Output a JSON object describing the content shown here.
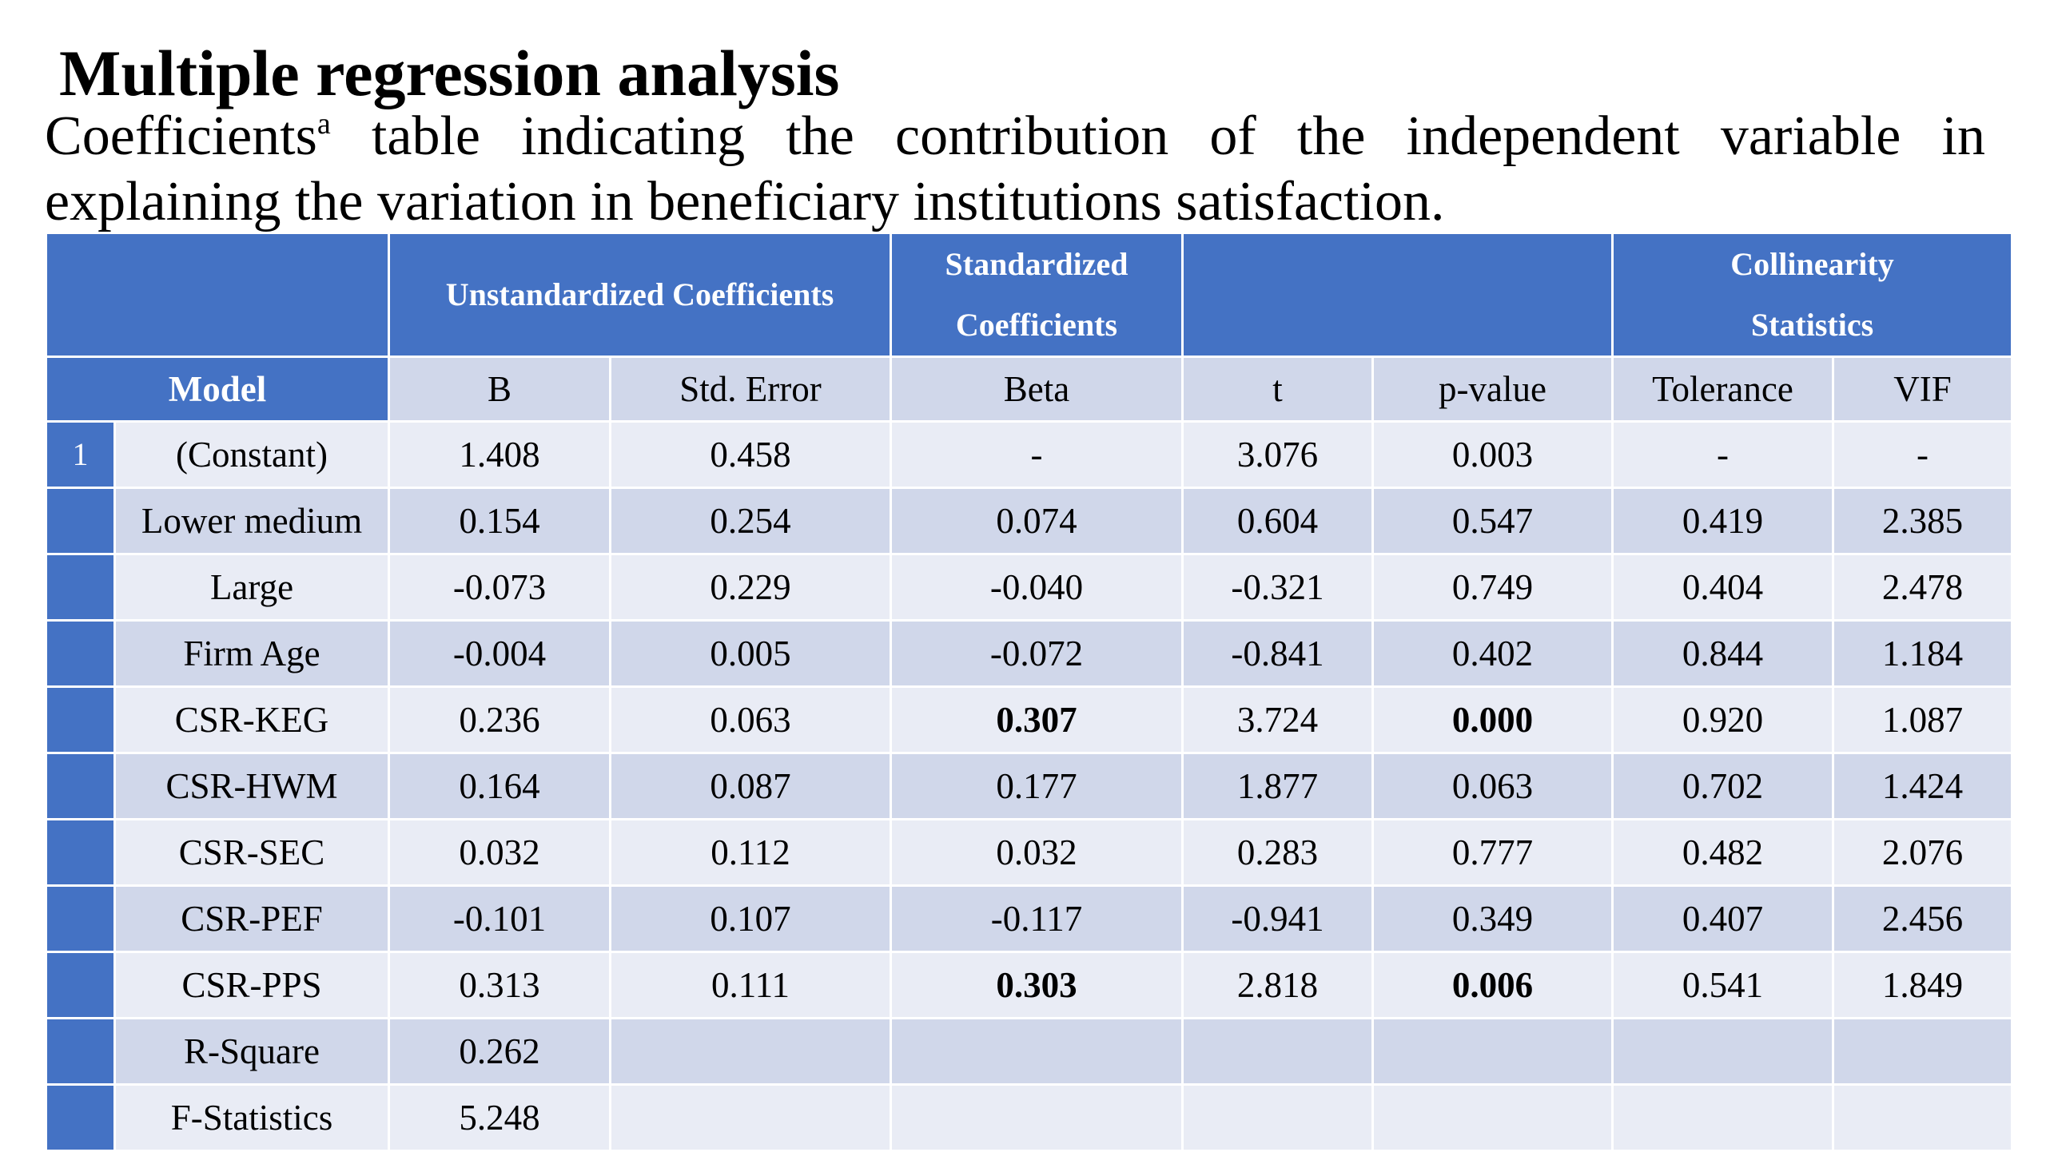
{
  "title": "Multiple regression analysis",
  "subtitle": {
    "lead": "Coefficients",
    "sup": "a",
    "rest": " table indicating the contribution of the independent variable in explaining the variation in beneficiary institutions satisfaction."
  },
  "table": {
    "group_headers": {
      "unstandardized": "Unstandardized Coefficients",
      "standardized_line1": "Standardized",
      "standardized_line2": "Coefficients",
      "collinearity_line1": "Collinearity",
      "collinearity_line2": "Statistics"
    },
    "columns": {
      "model": "Model",
      "b": "B",
      "std_error": "Std. Error",
      "beta": "Beta",
      "t": "t",
      "p_value": "p-value",
      "tolerance": "Tolerance",
      "vif": "VIF"
    },
    "model_index": "1",
    "rows": [
      {
        "label": "(Constant)",
        "b": "1.408",
        "se": "0.458",
        "beta": "-",
        "t": "3.076",
        "p": "0.003",
        "tol": "-",
        "vif": "-"
      },
      {
        "label": "Lower medium",
        "b": "0.154",
        "se": "0.254",
        "beta": "0.074",
        "t": "0.604",
        "p": "0.547",
        "tol": "0.419",
        "vif": "2.385"
      },
      {
        "label": "Large",
        "b": "-0.073",
        "se": "0.229",
        "beta": "-0.040",
        "t": "-0.321",
        "p": "0.749",
        "tol": "0.404",
        "vif": "2.478"
      },
      {
        "label": "Firm Age",
        "b": "-0.004",
        "se": "0.005",
        "beta": "-0.072",
        "t": "-0.841",
        "p": "0.402",
        "tol": "0.844",
        "vif": "1.184"
      },
      {
        "label": "CSR-KEG",
        "b": "0.236",
        "se": "0.063",
        "beta": "0.307",
        "t": "3.724",
        "p": "0.000",
        "tol": "0.920",
        "vif": "1.087"
      },
      {
        "label": "CSR-HWM",
        "b": "0.164",
        "se": "0.087",
        "beta": "0.177",
        "t": "1.877",
        "p": "0.063",
        "tol": "0.702",
        "vif": "1.424"
      },
      {
        "label": "CSR-SEC",
        "b": "0.032",
        "se": "0.112",
        "beta": "0.032",
        "t": "0.283",
        "p": "0.777",
        "tol": "0.482",
        "vif": "2.076"
      },
      {
        "label": "CSR-PEF",
        "b": "-0.101",
        "se": "0.107",
        "beta": "-0.117",
        "t": "-0.941",
        "p": "0.349",
        "tol": "0.407",
        "vif": "2.456"
      },
      {
        "label": "CSR-PPS",
        "b": "0.313",
        "se": "0.111",
        "beta": "0.303",
        "t": "2.818",
        "p": "0.006",
        "tol": "0.541",
        "vif": "1.849"
      }
    ],
    "r_square": {
      "label": "R-Square",
      "value": "0.262"
    },
    "f_statistics": {
      "label": "F-Statistics",
      "value": "5.248"
    }
  },
  "colors": {
    "header_blue": "#4472c4",
    "row_dark": "#d0d7ea",
    "row_light": "#e9ecf5"
  }
}
